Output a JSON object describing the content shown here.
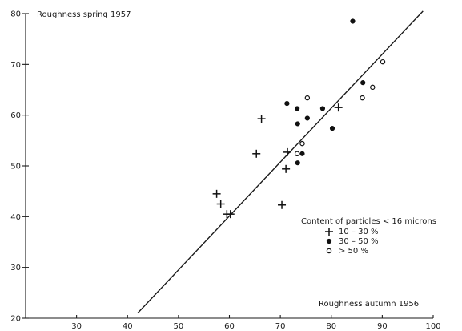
{
  "chart_data": {
    "type": "scatter",
    "xlabel": "Roughness autumn 1956",
    "ylabel": "Roughness spring 1957",
    "xlim": [
      20,
      100
    ],
    "ylim": [
      20,
      80
    ],
    "x_ticks": [
      "30",
      "40",
      "50",
      "60",
      "70",
      "80",
      "90",
      "100"
    ],
    "y_ticks": [
      "20",
      "30",
      "40",
      "50",
      "60",
      "70",
      "80"
    ],
    "legend": {
      "title": "Content of particles < 16 microns",
      "placement": "right",
      "entries": [
        {
          "marker": "plus",
          "label": "10 – 30 %"
        },
        {
          "marker": "filled",
          "label": "30 – 50 %"
        },
        {
          "marker": "open",
          "label": "> 50 %"
        }
      ]
    },
    "series": [
      {
        "marker": "plus",
        "points": [
          [
            57.5,
            44.5
          ],
          [
            58.3,
            42.5
          ],
          [
            59.5,
            40.5
          ],
          [
            60.2,
            40.5
          ],
          [
            65.3,
            52.4
          ],
          [
            66.3,
            59.3
          ],
          [
            70.3,
            42.3
          ],
          [
            71.1,
            49.4
          ],
          [
            71.4,
            52.7
          ],
          [
            81.4,
            61.5
          ]
        ]
      },
      {
        "marker": "filled",
        "points": [
          [
            71.3,
            62.3
          ],
          [
            73.3,
            61.3
          ],
          [
            73.4,
            58.3
          ],
          [
            73.4,
            50.6
          ],
          [
            74.3,
            52.4
          ],
          [
            75.3,
            59.4
          ],
          [
            78.3,
            61.3
          ],
          [
            80.2,
            57.4
          ],
          [
            84.2,
            78.5
          ],
          [
            86.2,
            66.4
          ]
        ]
      },
      {
        "marker": "open",
        "points": [
          [
            73.3,
            52.4
          ],
          [
            74.3,
            54.4
          ],
          [
            75.3,
            63.4
          ],
          [
            86.1,
            63.4
          ],
          [
            88.1,
            65.5
          ],
          [
            90.1,
            70.5
          ]
        ]
      }
    ],
    "fit_line": {
      "x": [
        42,
        98
      ],
      "y": [
        21,
        80.5
      ]
    }
  }
}
